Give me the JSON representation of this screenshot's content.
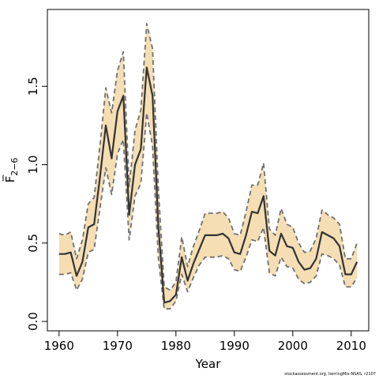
{
  "chart_data": {
    "type": "area",
    "title": "",
    "xlabel": "Year",
    "ylabel_main": "F",
    "ylabel_sub": "2−6",
    "xlim": [
      1958,
      2013
    ],
    "ylim": [
      -0.06,
      1.99
    ],
    "xticks": [
      1960,
      1970,
      1980,
      1990,
      2000,
      2010
    ],
    "yticks": [
      0.0,
      0.5,
      1.0,
      1.5
    ],
    "ytick_labels": [
      "0.0",
      "0.5",
      "1.0",
      "1.5"
    ],
    "grid": false,
    "legend": "none",
    "colors": {
      "band": "#f5deb3",
      "band_edge": "#707070",
      "line": "#333333",
      "axis": "#000000"
    },
    "x": [
      1960,
      1961,
      1962,
      1963,
      1964,
      1965,
      1966,
      1967,
      1968,
      1969,
      1970,
      1971,
      1972,
      1973,
      1974,
      1975,
      1976,
      1977,
      1978,
      1979,
      1980,
      1981,
      1982,
      1983,
      1984,
      1985,
      1986,
      1987,
      1988,
      1989,
      1990,
      1991,
      1992,
      1993,
      1994,
      1995,
      1996,
      1997,
      1998,
      1999,
      2000,
      2001,
      2002,
      2003,
      2004,
      2005,
      2006,
      2007,
      2008,
      2009,
      2010,
      2011
    ],
    "series": [
      {
        "values": [
          0.43,
          0.43,
          0.44,
          0.29,
          0.38,
          0.6,
          0.62,
          0.92,
          1.25,
          1.04,
          1.34,
          1.44,
          0.68,
          1.0,
          1.1,
          1.62,
          1.44,
          0.6,
          0.12,
          0.13,
          0.17,
          0.41,
          0.26,
          0.37,
          0.46,
          0.55,
          0.55,
          0.55,
          0.56,
          0.53,
          0.44,
          0.43,
          0.55,
          0.7,
          0.69,
          0.8,
          0.45,
          0.42,
          0.56,
          0.48,
          0.47,
          0.38,
          0.33,
          0.34,
          0.4,
          0.57,
          0.55,
          0.53,
          0.48,
          0.3,
          0.3,
          0.38
        ],
        "lower": [
          0.3,
          0.3,
          0.31,
          0.2,
          0.27,
          0.44,
          0.46,
          0.72,
          0.98,
          0.81,
          1.07,
          1.16,
          0.52,
          0.8,
          0.88,
          1.33,
          1.12,
          0.4,
          0.08,
          0.08,
          0.13,
          0.3,
          0.19,
          0.28,
          0.36,
          0.41,
          0.41,
          0.41,
          0.42,
          0.4,
          0.33,
          0.32,
          0.41,
          0.52,
          0.51,
          0.6,
          0.31,
          0.29,
          0.41,
          0.35,
          0.34,
          0.27,
          0.24,
          0.25,
          0.29,
          0.43,
          0.42,
          0.4,
          0.36,
          0.22,
          0.22,
          0.28
        ],
        "upper": [
          0.56,
          0.55,
          0.57,
          0.4,
          0.52,
          0.75,
          0.79,
          1.12,
          1.49,
          1.33,
          1.6,
          1.72,
          0.86,
          1.22,
          1.35,
          1.9,
          1.74,
          0.84,
          0.22,
          0.2,
          0.25,
          0.54,
          0.35,
          0.48,
          0.58,
          0.69,
          0.69,
          0.69,
          0.7,
          0.66,
          0.56,
          0.55,
          0.7,
          0.87,
          0.87,
          1.01,
          0.59,
          0.55,
          0.72,
          0.62,
          0.6,
          0.5,
          0.44,
          0.45,
          0.53,
          0.71,
          0.68,
          0.66,
          0.62,
          0.4,
          0.4,
          0.5
        ]
      }
    ]
  },
  "credit": "stockassessment.org, herringMix-NSAS, r2107"
}
